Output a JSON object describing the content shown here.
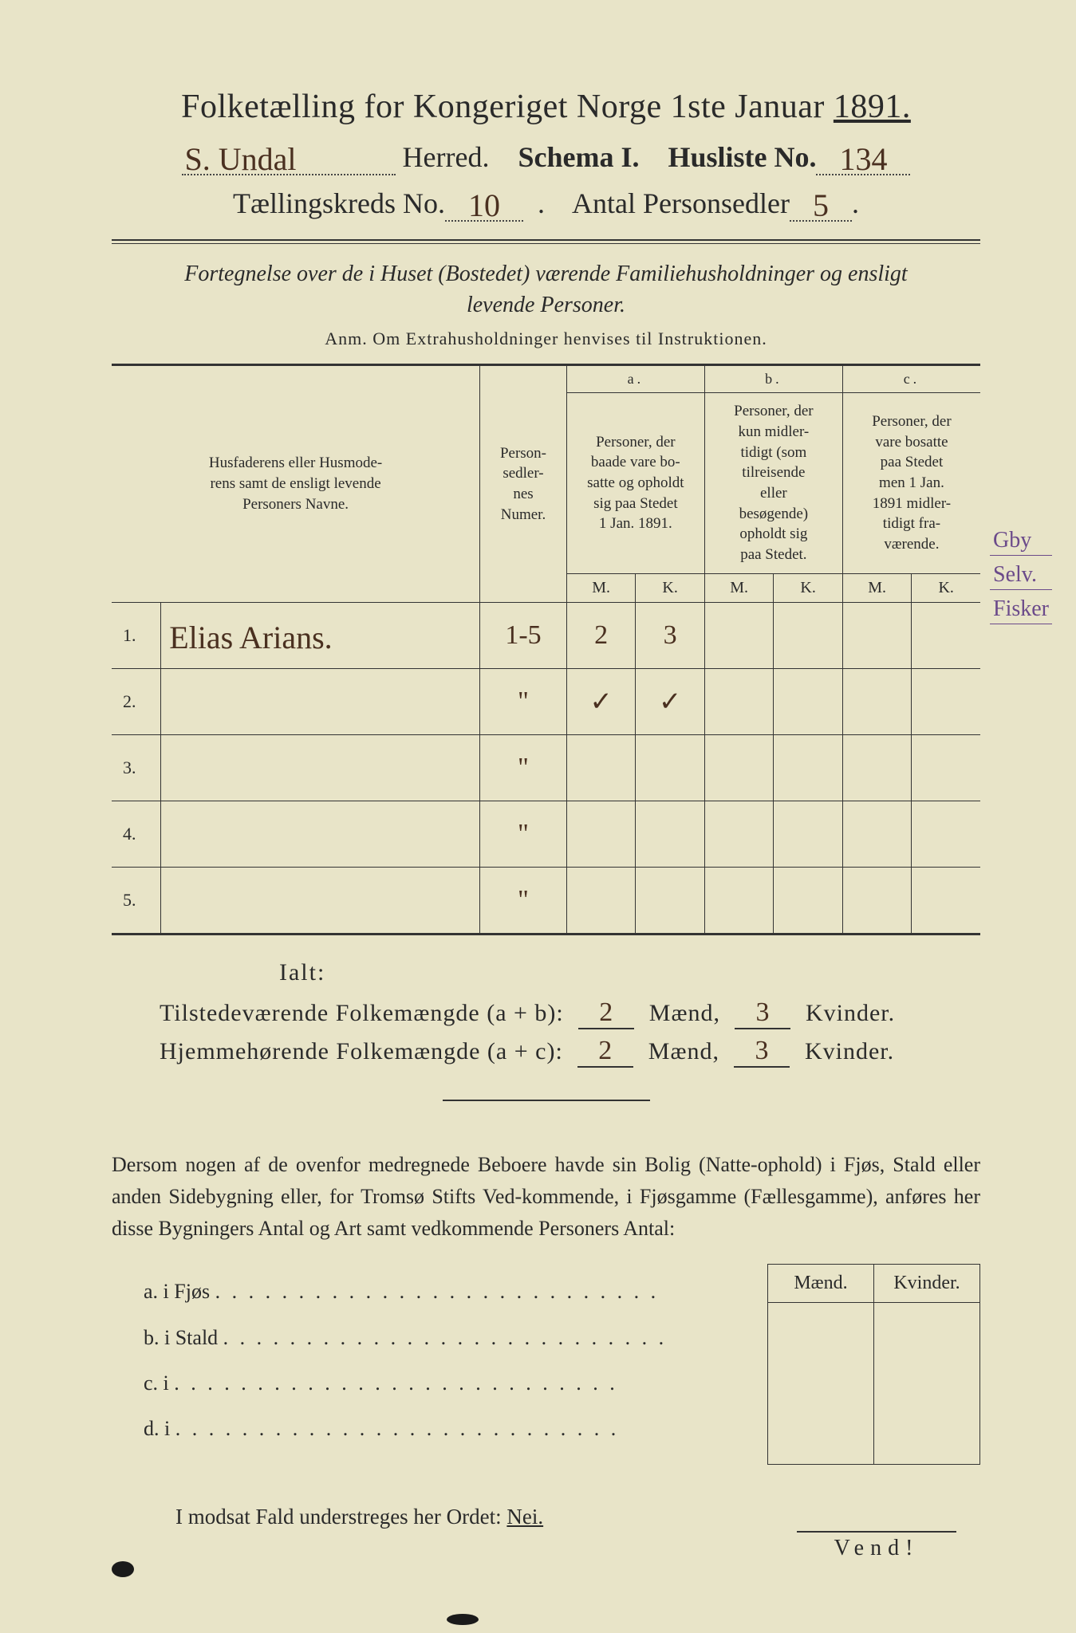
{
  "header": {
    "title_prefix": "Folketælling for Kongeriget Norge 1ste Januar ",
    "year": "1891.",
    "herred_value": "S. Undal",
    "herred_label": " Herred.",
    "schema_label": "Schema I.",
    "husliste_label": "Husliste No.",
    "husliste_value": "134",
    "kreds_label": "Tællingskreds No.",
    "kreds_value": "10",
    "antal_label": "Antal Personsedler",
    "antal_value": "5"
  },
  "subtitle": {
    "line1": "Fortegnelse over de i Huset (Bostedet) værende Familiehusholdninger og ensligt",
    "line2": "levende Personer.",
    "anm": "Anm.  Om Extrahusholdninger henvises til Instruktionen."
  },
  "table": {
    "col_name": "Husfaderens eller Husmode-\nrens samt de ensligt levende\nPersoners Navne.",
    "col_num": "Person-\nsedler-\nnes\nNumer.",
    "col_a_top": "a.",
    "col_a": "Personer, der\nbaade vare bo-\nsatte og opholdt\nsig paa Stedet\n1 Jan. 1891.",
    "col_b_top": "b.",
    "col_b": "Personer, der\nkun midler-\ntidigt (som\ntilreisende\neller\nbesøgende)\nopholdt sig\npaa Stedet.",
    "col_c_top": "c.",
    "col_c": "Personer, der\nvare bosatte\npaa Stedet\nmen 1 Jan.\n1891 midler-\ntidigt fra-\nværende.",
    "mk_m": "M.",
    "mk_k": "K.",
    "rows": [
      {
        "n": "1.",
        "name": "Elias Arians.",
        "num": "1-5",
        "a_m": "2",
        "a_k": "3",
        "b_m": "",
        "b_k": "",
        "c_m": "",
        "c_k": ""
      },
      {
        "n": "2.",
        "name": "",
        "num": "\"",
        "a_m": "✓",
        "a_k": "✓",
        "b_m": "",
        "b_k": "",
        "c_m": "",
        "c_k": ""
      },
      {
        "n": "3.",
        "name": "",
        "num": "\"",
        "a_m": "",
        "a_k": "",
        "b_m": "",
        "b_k": "",
        "c_m": "",
        "c_k": ""
      },
      {
        "n": "4.",
        "name": "",
        "num": "\"",
        "a_m": "",
        "a_k": "",
        "b_m": "",
        "b_k": "",
        "c_m": "",
        "c_k": ""
      },
      {
        "n": "5.",
        "name": "",
        "num": "\"",
        "a_m": "",
        "a_k": "",
        "b_m": "",
        "b_k": "",
        "c_m": "",
        "c_k": ""
      }
    ]
  },
  "margin": {
    "n1": "Gby",
    "n2": "Selv.",
    "n3": "Fisker"
  },
  "totals": {
    "ialt": "Ialt:",
    "line1_label": "Tilstedeværende Folkemængde (a + b):",
    "line2_label": "Hjemmehørende Folkemængde (a + c):",
    "maend": "Mænd,",
    "kvinder": "Kvinder.",
    "l1_m": "2",
    "l1_k": "3",
    "l2_m": "2",
    "l2_k": "3"
  },
  "para": "Dersom nogen af de ovenfor medregnede Beboere havde sin Bolig (Natte-ophold) i Fjøs, Stald eller anden Sidebygning eller, for Tromsø Stifts Ved-kommende, i Fjøsgamme (Fællesgamme), anføres her disse Bygningers Antal og Art samt vedkommende Personers Antal:",
  "abcd": {
    "a": "a.  i      Fjøs",
    "b": "b.  i      Stald",
    "c": "c.  i",
    "d": "d.  i",
    "dots": ". . . . . . . . . . . . . . . . . . . . . . . . . . ."
  },
  "mk": {
    "m": "Mænd.",
    "k": "Kvinder."
  },
  "nei": "I modsat Fald understreges her Ordet: ",
  "nei_word": "Nei.",
  "vend": "Vend!"
}
